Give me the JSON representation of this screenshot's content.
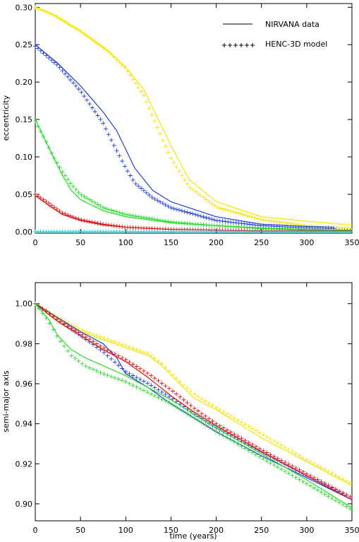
{
  "legend": {
    "solid_label": "NIRVANA data",
    "marker_label": "HENC-3D model",
    "placement": "top-right"
  },
  "colors": {
    "yellow": "#f4e400",
    "blue": "#1f3fd8",
    "green": "#22dd22",
    "red": "#e01010",
    "cyan": "#00d8e8",
    "axis": "#000000"
  },
  "chart_data": [
    {
      "type": "line",
      "title": "",
      "xlabel": "",
      "ylabel": "eccentricity",
      "xlim": [
        0,
        350
      ],
      "ylim": [
        -0.002,
        0.305
      ],
      "x_ticks": [
        "0",
        "50",
        "100",
        "150",
        "200",
        "250",
        "300",
        "350"
      ],
      "y_ticks": [
        "0.00",
        "0.05",
        "0.10",
        "0.15",
        "0.20",
        "0.25",
        "0.30"
      ],
      "grid": false,
      "series": [
        {
          "color": "yellow",
          "style": "solid",
          "x_max": 350,
          "points": [
            [
              0,
              0.3
            ],
            [
              20,
              0.29
            ],
            [
              50,
              0.268
            ],
            [
              80,
              0.242
            ],
            [
              100,
              0.22
            ],
            [
              120,
              0.19
            ],
            [
              140,
              0.14
            ],
            [
              150,
              0.115
            ],
            [
              170,
              0.07
            ],
            [
              200,
              0.04
            ],
            [
              250,
              0.02
            ],
            [
              300,
              0.014
            ],
            [
              350,
              0.009
            ]
          ]
        },
        {
          "color": "yellow",
          "style": "marker",
          "x_max": 350,
          "points": [
            [
              0,
              0.3
            ],
            [
              20,
              0.29
            ],
            [
              50,
              0.268
            ],
            [
              80,
              0.242
            ],
            [
              100,
              0.218
            ],
            [
              120,
              0.182
            ],
            [
              140,
              0.125
            ],
            [
              150,
              0.098
            ],
            [
              170,
              0.06
            ],
            [
              200,
              0.033
            ],
            [
              250,
              0.016
            ],
            [
              300,
              0.008
            ],
            [
              350,
              0.004
            ]
          ]
        },
        {
          "color": "blue",
          "style": "solid",
          "x_max": 330,
          "points": [
            [
              0,
              0.25
            ],
            [
              25,
              0.225
            ],
            [
              50,
              0.195
            ],
            [
              75,
              0.16
            ],
            [
              90,
              0.135
            ],
            [
              100,
              0.11
            ],
            [
              110,
              0.085
            ],
            [
              130,
              0.055
            ],
            [
              150,
              0.04
            ],
            [
              200,
              0.02
            ],
            [
              250,
              0.01
            ],
            [
              300,
              0.007
            ],
            [
              330,
              0.006
            ]
          ]
        },
        {
          "color": "blue",
          "style": "marker",
          "x_max": 330,
          "points": [
            [
              0,
              0.248
            ],
            [
              25,
              0.222
            ],
            [
              50,
              0.188
            ],
            [
              75,
              0.145
            ],
            [
              85,
              0.12
            ],
            [
              100,
              0.085
            ],
            [
              110,
              0.065
            ],
            [
              130,
              0.045
            ],
            [
              150,
              0.032
            ],
            [
              200,
              0.015
            ],
            [
              250,
              0.008
            ],
            [
              300,
              0.005
            ],
            [
              330,
              0.004
            ]
          ]
        },
        {
          "color": "green",
          "style": "solid",
          "x_max": 350,
          "points": [
            [
              0,
              0.15
            ],
            [
              10,
              0.125
            ],
            [
              20,
              0.1
            ],
            [
              30,
              0.075
            ],
            [
              40,
              0.055
            ],
            [
              50,
              0.043
            ],
            [
              75,
              0.028
            ],
            [
              100,
              0.02
            ],
            [
              150,
              0.012
            ],
            [
              200,
              0.008
            ],
            [
              250,
              0.005
            ],
            [
              300,
              0.003
            ],
            [
              350,
              0.002
            ]
          ]
        },
        {
          "color": "green",
          "style": "marker",
          "x_max": 350,
          "points": [
            [
              0,
              0.148
            ],
            [
              10,
              0.125
            ],
            [
              20,
              0.1
            ],
            [
              30,
              0.08
            ],
            [
              40,
              0.063
            ],
            [
              50,
              0.05
            ],
            [
              75,
              0.032
            ],
            [
              100,
              0.023
            ],
            [
              150,
              0.013
            ],
            [
              200,
              0.008
            ],
            [
              250,
              0.004
            ],
            [
              300,
              0.002
            ],
            [
              350,
              0.001
            ]
          ]
        },
        {
          "color": "red",
          "style": "solid",
          "x_max": 350,
          "points": [
            [
              0,
              0.048
            ],
            [
              15,
              0.035
            ],
            [
              30,
              0.023
            ],
            [
              50,
              0.015
            ],
            [
              75,
              0.009
            ],
            [
              100,
              0.006
            ],
            [
              150,
              0.003
            ],
            [
              200,
              0.002
            ],
            [
              250,
              0.001
            ],
            [
              300,
              0.001
            ],
            [
              350,
              0.001
            ]
          ]
        },
        {
          "color": "red",
          "style": "marker",
          "x_max": 350,
          "points": [
            [
              0,
              0.05
            ],
            [
              15,
              0.038
            ],
            [
              30,
              0.025
            ],
            [
              50,
              0.016
            ],
            [
              75,
              0.01
            ],
            [
              100,
              0.006
            ],
            [
              150,
              0.003
            ],
            [
              200,
              0.002
            ],
            [
              250,
              0.001
            ],
            [
              300,
              0.001
            ],
            [
              350,
              0.001
            ]
          ]
        },
        {
          "color": "cyan",
          "style": "solid",
          "x_max": 350,
          "points": [
            [
              0,
              0.0
            ],
            [
              350,
              0.0
            ]
          ]
        },
        {
          "color": "cyan",
          "style": "marker",
          "x_max": 350,
          "points": [
            [
              0,
              0.0
            ],
            [
              350,
              0.0
            ]
          ]
        }
      ]
    },
    {
      "type": "line",
      "title": "",
      "xlabel": "time (years)",
      "ylabel": "semi-major axis",
      "xlim": [
        0,
        350
      ],
      "ylim": [
        0.8915,
        1.0105
      ],
      "x_ticks": [
        "0",
        "50",
        "100",
        "150",
        "200",
        "250",
        "300",
        "350"
      ],
      "y_ticks": [
        "0.90",
        "0.92",
        "0.94",
        "0.96",
        "0.98",
        "1.00"
      ],
      "grid": false,
      "series": [
        {
          "color": "yellow",
          "style": "solid",
          "x_max": 350,
          "points": [
            [
              0,
              1.0
            ],
            [
              25,
              0.992
            ],
            [
              50,
              0.986
            ],
            [
              75,
              0.982
            ],
            [
              100,
              0.978
            ],
            [
              125,
              0.974
            ],
            [
              140,
              0.969
            ],
            [
              155,
              0.962
            ],
            [
              175,
              0.953
            ],
            [
              200,
              0.947
            ],
            [
              250,
              0.933
            ],
            [
              300,
              0.921
            ],
            [
              350,
              0.909
            ]
          ]
        },
        {
          "color": "yellow",
          "style": "marker",
          "x_max": 350,
          "points": [
            [
              0,
              1.0
            ],
            [
              25,
              0.993
            ],
            [
              50,
              0.987
            ],
            [
              75,
              0.983
            ],
            [
              100,
              0.979
            ],
            [
              125,
              0.975
            ],
            [
              140,
              0.97
            ],
            [
              155,
              0.963
            ],
            [
              175,
              0.955
            ],
            [
              200,
              0.948
            ],
            [
              250,
              0.935
            ],
            [
              300,
              0.922
            ],
            [
              350,
              0.91
            ]
          ]
        },
        {
          "color": "blue",
          "style": "solid",
          "x_max": 350,
          "points": [
            [
              0,
              1.0
            ],
            [
              25,
              0.993
            ],
            [
              50,
              0.986
            ],
            [
              75,
              0.98
            ],
            [
              90,
              0.973
            ],
            [
              100,
              0.965
            ],
            [
              125,
              0.958
            ],
            [
              150,
              0.95
            ],
            [
              175,
              0.943
            ],
            [
              200,
              0.936
            ],
            [
              250,
              0.924
            ],
            [
              300,
              0.913
            ],
            [
              350,
              0.902
            ]
          ]
        },
        {
          "color": "blue",
          "style": "marker",
          "x_max": 350,
          "points": [
            [
              0,
              1.0
            ],
            [
              25,
              0.992
            ],
            [
              50,
              0.984
            ],
            [
              75,
              0.976
            ],
            [
              90,
              0.97
            ],
            [
              100,
              0.966
            ],
            [
              125,
              0.96
            ],
            [
              150,
              0.953
            ],
            [
              175,
              0.945
            ],
            [
              200,
              0.938
            ],
            [
              250,
              0.926
            ],
            [
              300,
              0.914
            ],
            [
              350,
              0.903
            ]
          ]
        },
        {
          "color": "red",
          "style": "solid",
          "x_max": 350,
          "points": [
            [
              0,
              1.0
            ],
            [
              25,
              0.991
            ],
            [
              50,
              0.984
            ],
            [
              75,
              0.977
            ],
            [
              100,
              0.971
            ],
            [
              125,
              0.963
            ],
            [
              150,
              0.954
            ],
            [
              175,
              0.946
            ],
            [
              200,
              0.939
            ],
            [
              250,
              0.926
            ],
            [
              300,
              0.914
            ],
            [
              350,
              0.902
            ]
          ]
        },
        {
          "color": "red",
          "style": "marker",
          "x_max": 350,
          "points": [
            [
              0,
              1.0
            ],
            [
              25,
              0.992
            ],
            [
              50,
              0.985
            ],
            [
              75,
              0.978
            ],
            [
              100,
              0.972
            ],
            [
              125,
              0.965
            ],
            [
              150,
              0.957
            ],
            [
              175,
              0.948
            ],
            [
              200,
              0.94
            ],
            [
              250,
              0.927
            ],
            [
              300,
              0.915
            ],
            [
              350,
              0.903
            ]
          ]
        },
        {
          "color": "green",
          "style": "solid",
          "x_max": 350,
          "points": [
            [
              0,
              1.0
            ],
            [
              15,
              0.992
            ],
            [
              25,
              0.984
            ],
            [
              40,
              0.977
            ],
            [
              55,
              0.973
            ],
            [
              75,
              0.969
            ],
            [
              100,
              0.964
            ],
            [
              150,
              0.952
            ],
            [
              200,
              0.938
            ],
            [
              250,
              0.925
            ],
            [
              300,
              0.912
            ],
            [
              350,
              0.898
            ]
          ]
        },
        {
          "color": "green",
          "style": "marker",
          "x_max": 350,
          "points": [
            [
              0,
              1.0
            ],
            [
              15,
              0.991
            ],
            [
              25,
              0.983
            ],
            [
              40,
              0.974
            ],
            [
              55,
              0.969
            ],
            [
              75,
              0.965
            ],
            [
              100,
              0.961
            ],
            [
              150,
              0.95
            ],
            [
              200,
              0.936
            ],
            [
              250,
              0.923
            ],
            [
              300,
              0.91
            ],
            [
              350,
              0.897
            ]
          ]
        }
      ]
    }
  ]
}
